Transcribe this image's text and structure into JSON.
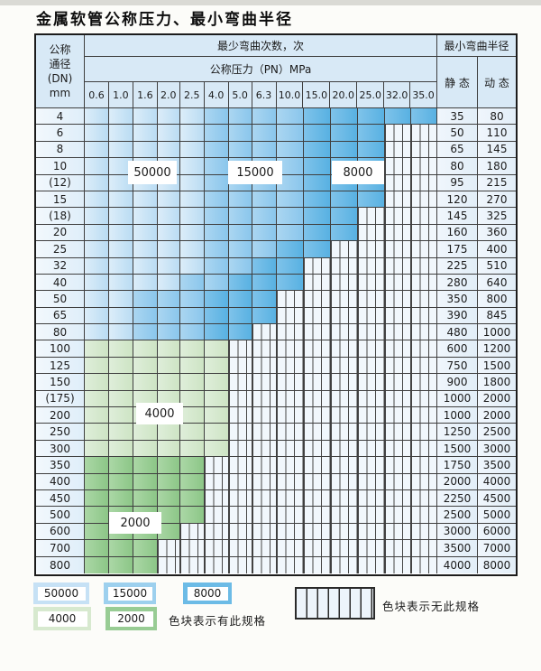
{
  "title": "金属软管公称压力、最小弯曲半径",
  "table": {
    "dn_header_lines": [
      "公称",
      "通径",
      "(DN)",
      "mm"
    ],
    "bend_cycles_header": "最少弯曲次数，次",
    "pressure_header": "公称压力（PN）MPa",
    "radius_header": "最小弯曲半径",
    "static_header": "静 态",
    "dynamic_header": "动 态",
    "pressure_columns": [
      "0.6",
      "1.0",
      "1.6",
      "2.0",
      "2.5",
      "4.0",
      "5.0",
      "6.3",
      "10.0",
      "15.0",
      "20.0",
      "25.0",
      "32.0",
      "35.0"
    ],
    "cell_legend_key": {
      "b1": "50000",
      "b2": "15000",
      "b3": "8000",
      "g1": "4000",
      "g2": "2000",
      "x": "no-spec"
    },
    "rows": [
      {
        "dn": "4",
        "static": "35",
        "dynamic": "80",
        "cells": "b1 b1 b1 b1 b1 b2 b2 b2 b2 b3 b3 b3 b3 b3"
      },
      {
        "dn": "6",
        "static": "50",
        "dynamic": "110",
        "cells": "b1 b1 b1 b1 b1 b2 b2 b2 b2 b3 b3 b3 x x"
      },
      {
        "dn": "8",
        "static": "65",
        "dynamic": "145",
        "cells": "b1 b1 b1 b1 b1 b2 b2 b2 b2 b3 b3 b3 x x"
      },
      {
        "dn": "10",
        "static": "80",
        "dynamic": "180",
        "cells": "b1 b1 b1 b1 b1 b2 b2 b2 b2 b3 b3 b3 x x"
      },
      {
        "dn": "(12)",
        "static": "95",
        "dynamic": "215",
        "cells": "b1 b1 b1 b1 b1 b2 b2 b2 b2 b3 b3 b3 x x"
      },
      {
        "dn": "15",
        "static": "120",
        "dynamic": "270",
        "cells": "b1 b1 b1 b1 b1 b2 b2 b2 b2 b3 b3 b3 x x"
      },
      {
        "dn": "(18)",
        "static": "145",
        "dynamic": "325",
        "cells": "b1 b1 b1 b1 b1 b2 b2 b2 b2 b3 b3 x x x"
      },
      {
        "dn": "20",
        "static": "160",
        "dynamic": "360",
        "cells": "b1 b1 b1 b1 b1 b2 b2 b2 b2 b3 b3 x x x"
      },
      {
        "dn": "25",
        "static": "175",
        "dynamic": "400",
        "cells": "b1 b1 b1 b1 b1 b2 b2 b2 b3 b3 x x x x"
      },
      {
        "dn": "32",
        "static": "225",
        "dynamic": "510",
        "cells": "b1 b1 b1 b1 b1 b2 b2 b3 b3 x x x x x"
      },
      {
        "dn": "40",
        "static": "280",
        "dynamic": "640",
        "cells": "b1 b1 b1 b1 b2 b2 b3 b3 b3 x x x x x"
      },
      {
        "dn": "50",
        "static": "350",
        "dynamic": "800",
        "cells": "b1 b1 b2 b2 b2 b3 b3 b3 x x x x x x"
      },
      {
        "dn": "65",
        "static": "390",
        "dynamic": "845",
        "cells": "b1 b1 b2 b2 b2 b3 b3 b3 x x x x x x"
      },
      {
        "dn": "80",
        "static": "480",
        "dynamic": "1000",
        "cells": "b1 b1 b2 b2 b2 b3 b3 x x x x x x x"
      },
      {
        "dn": "100",
        "static": "600",
        "dynamic": "1200",
        "cells": "g1 g1 g1 g1 g1 g1 x x x x x x x x"
      },
      {
        "dn": "125",
        "static": "750",
        "dynamic": "1500",
        "cells": "g1 g1 g1 g1 g1 g1 x x x x x x x x"
      },
      {
        "dn": "150",
        "static": "900",
        "dynamic": "1800",
        "cells": "g1 g1 g1 g1 g1 g1 x x x x x x x x"
      },
      {
        "dn": "(175)",
        "static": "1000",
        "dynamic": "2000",
        "cells": "g1 g1 g1 g1 g1 g1 x x x x x x x x"
      },
      {
        "dn": "200",
        "static": "1000",
        "dynamic": "2000",
        "cells": "g1 g1 g1 g1 g1 g1 x x x x x x x x"
      },
      {
        "dn": "250",
        "static": "1250",
        "dynamic": "2500",
        "cells": "g1 g1 g1 g1 g1 g1 x x x x x x x x"
      },
      {
        "dn": "300",
        "static": "1500",
        "dynamic": "3000",
        "cells": "g1 g1 g1 g1 g1 g1 x x x x x x x x"
      },
      {
        "dn": "350",
        "static": "1750",
        "dynamic": "3500",
        "cells": "g2 g2 g2 g2 g2 x x x x x x x x x"
      },
      {
        "dn": "400",
        "static": "2000",
        "dynamic": "4000",
        "cells": "g2 g2 g2 g2 g2 x x x x x x x x x"
      },
      {
        "dn": "450",
        "static": "2250",
        "dynamic": "4500",
        "cells": "g2 g2 g2 g2 g2 x x x x x x x x x"
      },
      {
        "dn": "500",
        "static": "2500",
        "dynamic": "5000",
        "cells": "g2 g2 g2 g2 g2 x x x x x x x x x"
      },
      {
        "dn": "600",
        "static": "3000",
        "dynamic": "6000",
        "cells": "g2 g2 g2 g2 x x x x x x x x x x"
      },
      {
        "dn": "700",
        "static": "3500",
        "dynamic": "7000",
        "cells": "g2 g2 g2 x x x x x x x x x x x"
      },
      {
        "dn": "800",
        "static": "4000",
        "dynamic": "8000",
        "cells": "g2 g2 g2 x x x x x x x x x x x"
      }
    ],
    "float_labels": [
      "50000",
      "15000",
      "8000",
      "4000",
      "2000"
    ]
  },
  "legend": {
    "blocks": [
      {
        "label": "50000",
        "color": "#c6e1f5"
      },
      {
        "label": "15000",
        "color": "#9dd0ee"
      },
      {
        "label": "8000",
        "color": "#6cbbe6"
      },
      {
        "label": "4000",
        "color": "#d7e9cf"
      },
      {
        "label": "2000",
        "color": "#98cc94"
      }
    ],
    "available_note": "色块表示有此规格",
    "unavailable_note": "色块表示无此规格"
  },
  "colors": {
    "cycles_50000": "#c6e1f5",
    "cycles_15000": "#9dd0ee",
    "cycles_8000": "#6cbbe6",
    "cycles_4000": "#d7e9cf",
    "cycles_2000": "#98cc94",
    "header_bg": "#d8e9f6",
    "grid_line": "#3f3f3f"
  }
}
